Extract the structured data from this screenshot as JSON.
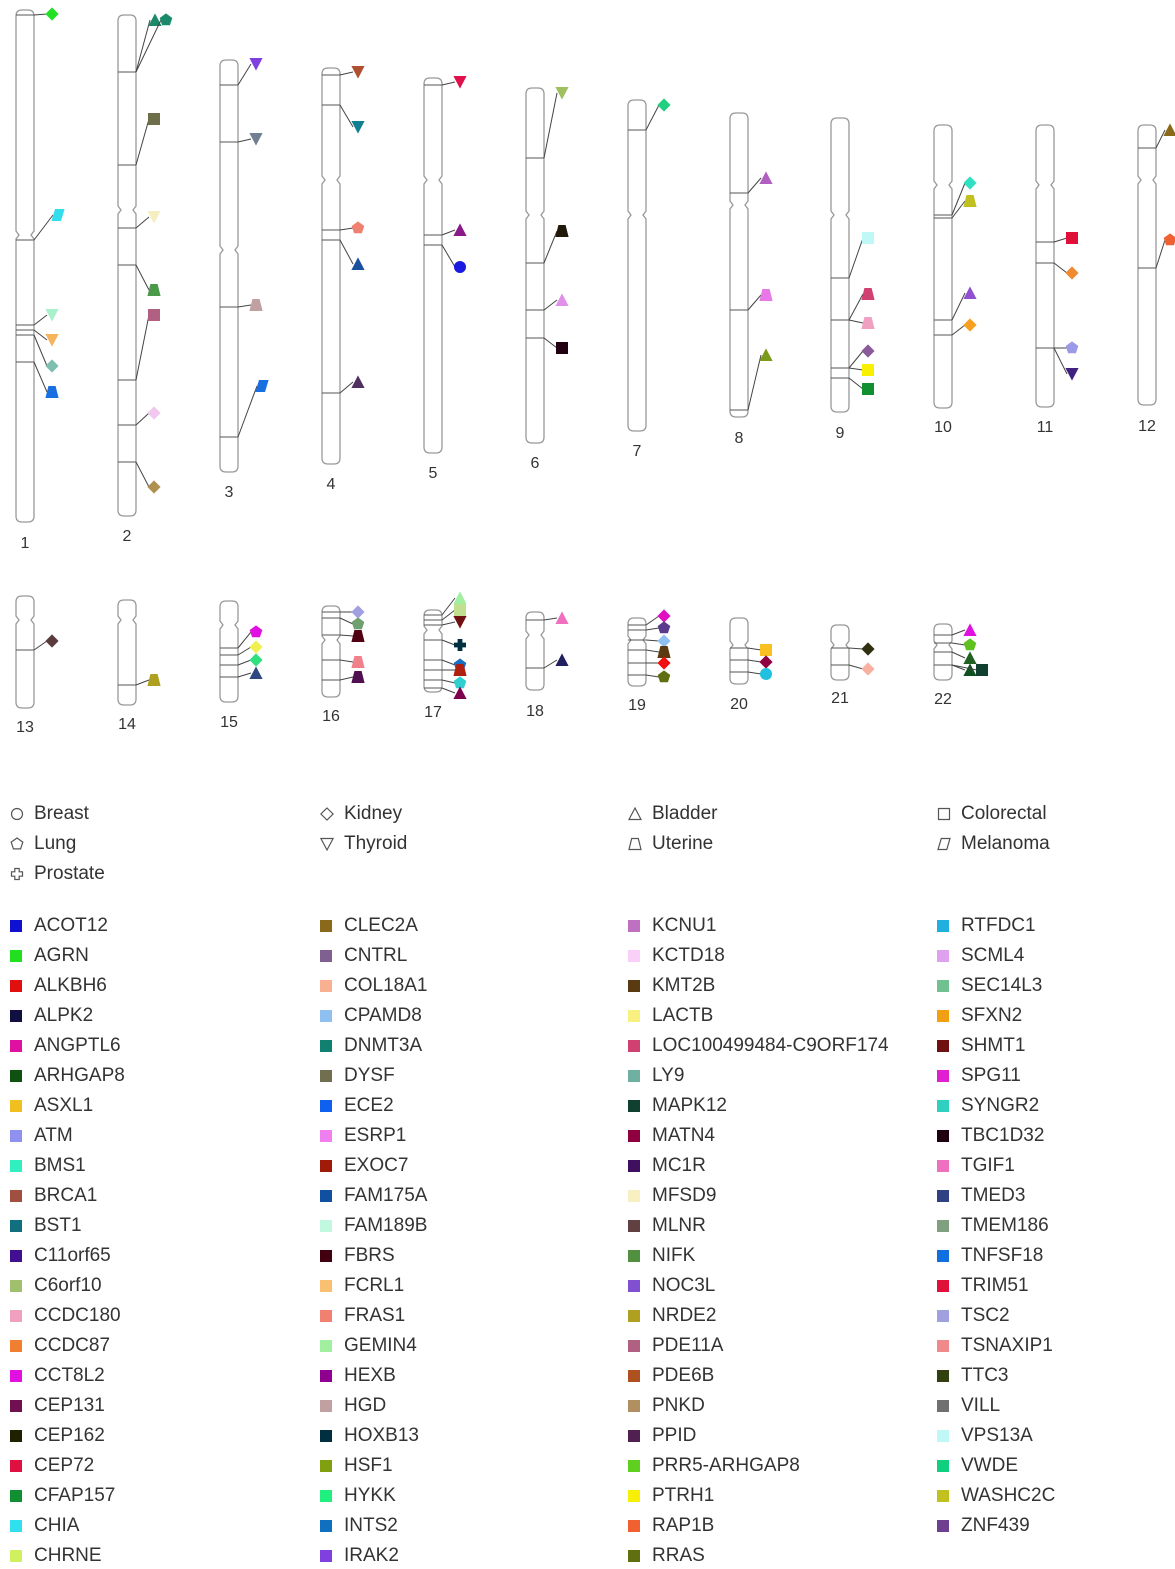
{
  "chromosomes": [
    {
      "label": "1",
      "markers": [
        {
          "color": "#22e022",
          "shape": "diamond"
        },
        {
          "color": "#33ddee",
          "shape": "parallelogram"
        },
        {
          "color": "#aaf0cc",
          "shape": "triangle-down"
        },
        {
          "color": "#f5b45a",
          "shape": "triangle-down"
        },
        {
          "color": "#7fbfb0",
          "shape": "diamond"
        },
        {
          "color": "#1a6fe0",
          "shape": "trapezoid"
        }
      ]
    },
    {
      "label": "2",
      "markers": [
        {
          "color": "#1a8a6a",
          "shape": "triangle"
        },
        {
          "color": "#1a8a6a",
          "shape": "pentagon"
        },
        {
          "color": "#6e6e4a",
          "shape": "square"
        },
        {
          "color": "#f5eec0",
          "shape": "triangle-down"
        },
        {
          "color": "#4a9a4a",
          "shape": "trapezoid"
        },
        {
          "color": "#b06080",
          "shape": "square"
        },
        {
          "color": "#f0c8f0",
          "shape": "diamond"
        },
        {
          "color": "#b09050",
          "shape": "diamond"
        }
      ]
    },
    {
      "label": "3",
      "markers": [
        {
          "color": "#8040e0",
          "shape": "triangle-down"
        },
        {
          "color": "#708090",
          "shape": "triangle-down"
        },
        {
          "color": "#c0a0a0",
          "shape": "trapezoid"
        },
        {
          "color": "#1a6fe0",
          "shape": "parallelogram"
        }
      ]
    },
    {
      "label": "4",
      "markers": [
        {
          "color": "#b05030",
          "shape": "triangle-down"
        },
        {
          "color": "#108090",
          "shape": "triangle-down"
        },
        {
          "color": "#f08070",
          "shape": "pentagon"
        },
        {
          "color": "#1a50a0",
          "shape": "triangle"
        },
        {
          "color": "#503060",
          "shape": "triangle"
        }
      ]
    },
    {
      "label": "5",
      "markers": [
        {
          "color": "#e0104a",
          "shape": "triangle-down"
        },
        {
          "color": "#8a1a8a",
          "shape": "triangle"
        },
        {
          "color": "#1a1ae0",
          "shape": "circle"
        }
      ]
    },
    {
      "label": "6",
      "markers": [
        {
          "color": "#a0c060",
          "shape": "triangle-down"
        },
        {
          "color": "#201808",
          "shape": "trapezoid"
        },
        {
          "color": "#e090e8",
          "shape": "triangle"
        },
        {
          "color": "#200010",
          "shape": "square"
        }
      ]
    },
    {
      "label": "7",
      "markers": [
        {
          "color": "#20d080",
          "shape": "diamond"
        }
      ]
    },
    {
      "label": "8",
      "markers": [
        {
          "color": "#b060c0",
          "shape": "triangle"
        },
        {
          "color": "#e878e8",
          "shape": "trapezoid"
        },
        {
          "color": "#7a9a1a",
          "shape": "triangle"
        }
      ]
    },
    {
      "label": "9",
      "markers": [
        {
          "color": "#c0f8f8",
          "shape": "square"
        },
        {
          "color": "#d04070",
          "shape": "trapezoid"
        },
        {
          "color": "#f0a0c0",
          "shape": "trapezoid"
        },
        {
          "color": "#8a5a9a",
          "shape": "diamond"
        },
        {
          "color": "#f8f000",
          "shape": "square"
        },
        {
          "color": "#109030",
          "shape": "square"
        }
      ]
    },
    {
      "label": "10",
      "markers": [
        {
          "color": "#30e0c0",
          "shape": "diamond"
        },
        {
          "color": "#c0c020",
          "shape": "trapezoid"
        },
        {
          "color": "#9050d0",
          "shape": "triangle"
        },
        {
          "color": "#f8a020",
          "shape": "diamond"
        }
      ]
    },
    {
      "label": "11",
      "markers": [
        {
          "color": "#e0103a",
          "shape": "square"
        },
        {
          "color": "#f08a30",
          "shape": "diamond"
        },
        {
          "color": "#9a9ae8",
          "shape": "pentagon"
        },
        {
          "color": "#402080",
          "shape": "triangle-down"
        }
      ]
    },
    {
      "label": "12",
      "markers": [
        {
          "color": "#8a6a1a",
          "shape": "triangle"
        },
        {
          "color": "#f06030",
          "shape": "pentagon"
        }
      ]
    },
    {
      "label": "13",
      "markers": [
        {
          "color": "#5a3a3a",
          "shape": "diamond"
        }
      ]
    },
    {
      "label": "14",
      "markers": [
        {
          "color": "#b0a020",
          "shape": "trapezoid"
        }
      ]
    },
    {
      "label": "15",
      "markers": [
        {
          "color": "#e010e0",
          "shape": "pentagon"
        },
        {
          "color": "#f0f050",
          "shape": "diamond"
        },
        {
          "color": "#30e080",
          "shape": "diamond"
        },
        {
          "color": "#304880",
          "shape": "triangle"
        }
      ]
    },
    {
      "label": "16",
      "markers": [
        {
          "color": "#a0a0e0",
          "shape": "diamond"
        },
        {
          "color": "#70a070",
          "shape": "pentagon"
        },
        {
          "color": "#500010",
          "shape": "trapezoid"
        },
        {
          "color": "#f0808a",
          "shape": "trapezoid"
        },
        {
          "color": "#501050",
          "shape": "trapezoid"
        }
      ]
    },
    {
      "label": "17",
      "markers": [
        {
          "color": "#a0f0a0",
          "shape": "triangle"
        },
        {
          "color": "#c0e090",
          "shape": "square"
        },
        {
          "color": "#701010",
          "shape": "triangle-down"
        },
        {
          "color": "#003040",
          "shape": "cross"
        },
        {
          "color": "#1a70c0",
          "shape": "pentagon"
        },
        {
          "color": "#b02010",
          "shape": "trapezoid"
        },
        {
          "color": "#30d0d0",
          "shape": "pentagon"
        },
        {
          "color": "#800050",
          "shape": "triangle"
        }
      ]
    },
    {
      "label": "18",
      "markers": [
        {
          "color": "#f070c0",
          "shape": "triangle"
        },
        {
          "color": "#202060",
          "shape": "triangle"
        }
      ]
    },
    {
      "label": "19",
      "markers": [
        {
          "color": "#e010c0",
          "shape": "diamond"
        },
        {
          "color": "#5a3a8a",
          "shape": "pentagon"
        },
        {
          "color": "#90c0f0",
          "shape": "diamond"
        },
        {
          "color": "#5a3a10",
          "shape": "trapezoid"
        },
        {
          "color": "#f01010",
          "shape": "diamond"
        },
        {
          "color": "#607010",
          "shape": "pentagon"
        }
      ]
    },
    {
      "label": "20",
      "markers": [
        {
          "color": "#f8c020",
          "shape": "square"
        },
        {
          "color": "#900040",
          "shape": "diamond"
        },
        {
          "color": "#20c0e0",
          "shape": "circle"
        }
      ]
    },
    {
      "label": "21",
      "markers": [
        {
          "color": "#303010",
          "shape": "diamond"
        },
        {
          "color": "#f8b0a0",
          "shape": "diamond"
        }
      ]
    },
    {
      "label": "22",
      "markers": [
        {
          "color": "#e010e0",
          "shape": "triangle"
        },
        {
          "color": "#60c020",
          "shape": "pentagon"
        },
        {
          "color": "#206020",
          "shape": "triangle"
        },
        {
          "color": "#105020",
          "shape": "triangle"
        },
        {
          "color": "#104030",
          "shape": "square"
        }
      ]
    }
  ],
  "cancer_types": [
    {
      "name": "Breast",
      "shape": "circle"
    },
    {
      "name": "Lung",
      "shape": "pentagon"
    },
    {
      "name": "Prostate",
      "shape": "cross"
    },
    {
      "name": "Kidney",
      "shape": "diamond"
    },
    {
      "name": "Thyroid",
      "shape": "triangle-down"
    },
    {
      "name": "Bladder",
      "shape": "triangle"
    },
    {
      "name": "Uterine",
      "shape": "trapezoid"
    },
    {
      "name": "Colorectal",
      "shape": "square"
    },
    {
      "name": "Melanoma",
      "shape": "parallelogram"
    }
  ],
  "genes": [
    {
      "name": "ACOT12",
      "color": "#1010d0"
    },
    {
      "name": "AGRN",
      "color": "#20e020"
    },
    {
      "name": "ALKBH6",
      "color": "#e01010"
    },
    {
      "name": "ALPK2",
      "color": "#101040"
    },
    {
      "name": "ANGPTL6",
      "color": "#e010a0"
    },
    {
      "name": "ARHGAP8",
      "color": "#105010"
    },
    {
      "name": "ASXL1",
      "color": "#f0c020"
    },
    {
      "name": "ATM",
      "color": "#9090f0"
    },
    {
      "name": "BMS1",
      "color": "#30f0c0"
    },
    {
      "name": "BRCA1",
      "color": "#a05040"
    },
    {
      "name": "BST1",
      "color": "#107080"
    },
    {
      "name": "C11orf65",
      "color": "#401090"
    },
    {
      "name": "C6orf10",
      "color": "#a0c070"
    },
    {
      "name": "CCDC180",
      "color": "#f0a0c0"
    },
    {
      "name": "CCDC87",
      "color": "#f08030"
    },
    {
      "name": "CCT8L2",
      "color": "#e010e0"
    },
    {
      "name": "CEP131",
      "color": "#701050"
    },
    {
      "name": "CEP162",
      "color": "#202000"
    },
    {
      "name": "CEP72",
      "color": "#e01040"
    },
    {
      "name": "CFAP157",
      "color": "#109030"
    },
    {
      "name": "CHIA",
      "color": "#30e0f0"
    },
    {
      "name": "CHRNE",
      "color": "#d0f060"
    },
    {
      "name": "CLEC2A",
      "color": "#8a6a1a"
    },
    {
      "name": "CNTRL",
      "color": "#806090"
    },
    {
      "name": "COL18A1",
      "color": "#f8b090"
    },
    {
      "name": "CPAMD8",
      "color": "#90c0f0"
    },
    {
      "name": "DNMT3A",
      "color": "#108070"
    },
    {
      "name": "DYSF",
      "color": "#707050"
    },
    {
      "name": "ECE2",
      "color": "#1060f0"
    },
    {
      "name": "ESRP1",
      "color": "#f080f0"
    },
    {
      "name": "EXOC7",
      "color": "#a01a0a"
    },
    {
      "name": "FAM175A",
      "color": "#1050a0"
    },
    {
      "name": "FAM189B",
      "color": "#c0f8e0"
    },
    {
      "name": "FBRS",
      "color": "#400010"
    },
    {
      "name": "FCRL1",
      "color": "#f8c070"
    },
    {
      "name": "FRAS1",
      "color": "#f08070"
    },
    {
      "name": "GEMIN4",
      "color": "#a0f0a0"
    },
    {
      "name": "HEXB",
      "color": "#900090"
    },
    {
      "name": "HGD",
      "color": "#c0a0a0"
    },
    {
      "name": "HOXB13",
      "color": "#003040"
    },
    {
      "name": "HSF1",
      "color": "#80a010"
    },
    {
      "name": "HYKK",
      "color": "#20f080"
    },
    {
      "name": "INTS2",
      "color": "#1070c0"
    },
    {
      "name": "IRAK2",
      "color": "#8040e0"
    },
    {
      "name": "KCNU1",
      "color": "#c070c0"
    },
    {
      "name": "KCTD18",
      "color": "#f8d0f8"
    },
    {
      "name": "KMT2B",
      "color": "#5a3a10"
    },
    {
      "name": "LACTB",
      "color": "#f8f080"
    },
    {
      "name": "LOC100499484-C9ORF174",
      "color": "#d04070"
    },
    {
      "name": "LY9",
      "color": "#70b0a0"
    },
    {
      "name": "MAPK12",
      "color": "#104030"
    },
    {
      "name": "MATN4",
      "color": "#900040"
    },
    {
      "name": "MC1R",
      "color": "#401060"
    },
    {
      "name": "MFSD9",
      "color": "#f8f0c0"
    },
    {
      "name": "MLNR",
      "color": "#604040"
    },
    {
      "name": "NIFK",
      "color": "#509040"
    },
    {
      "name": "NOC3L",
      "color": "#8050d0"
    },
    {
      "name": "NRDE2",
      "color": "#b0a020"
    },
    {
      "name": "PDE11A",
      "color": "#b06080"
    },
    {
      "name": "PDE6B",
      "color": "#b05020"
    },
    {
      "name": "PNKD",
      "color": "#b09060"
    },
    {
      "name": "PPID",
      "color": "#502050"
    },
    {
      "name": "PRR5-ARHGAP8",
      "color": "#60d020"
    },
    {
      "name": "PTRH1",
      "color": "#f8f000"
    },
    {
      "name": "RAP1B",
      "color": "#f06030"
    },
    {
      "name": "RRAS",
      "color": "#607010"
    },
    {
      "name": "RTFDC1",
      "color": "#20b0e0"
    },
    {
      "name": "SCML4",
      "color": "#e0a0f0"
    },
    {
      "name": "SEC14L3",
      "color": "#70c090"
    },
    {
      "name": "SFXN2",
      "color": "#f0a010"
    },
    {
      "name": "SHMT1",
      "color": "#701010"
    },
    {
      "name": "SPG11",
      "color": "#e020d0"
    },
    {
      "name": "SYNGR2",
      "color": "#30d0c0"
    },
    {
      "name": "TBC1D32",
      "color": "#200010"
    },
    {
      "name": "TGIF1",
      "color": "#f070c0"
    },
    {
      "name": "TMED3",
      "color": "#304080"
    },
    {
      "name": "TMEM186",
      "color": "#80a080"
    },
    {
      "name": "TNFSF18",
      "color": "#1070e0"
    },
    {
      "name": "TRIM51",
      "color": "#e0103a"
    },
    {
      "name": "TSC2",
      "color": "#a0a0e0"
    },
    {
      "name": "TSNAXIP1",
      "color": "#f08a8a"
    },
    {
      "name": "TTC3",
      "color": "#304010"
    },
    {
      "name": "VILL",
      "color": "#707070"
    },
    {
      "name": "VPS13A",
      "color": "#c0f8f8"
    },
    {
      "name": "VWDE",
      "color": "#10d080"
    },
    {
      "name": "WASHC2C",
      "color": "#c0c020"
    },
    {
      "name": "ZNF439",
      "color": "#704090"
    }
  ]
}
